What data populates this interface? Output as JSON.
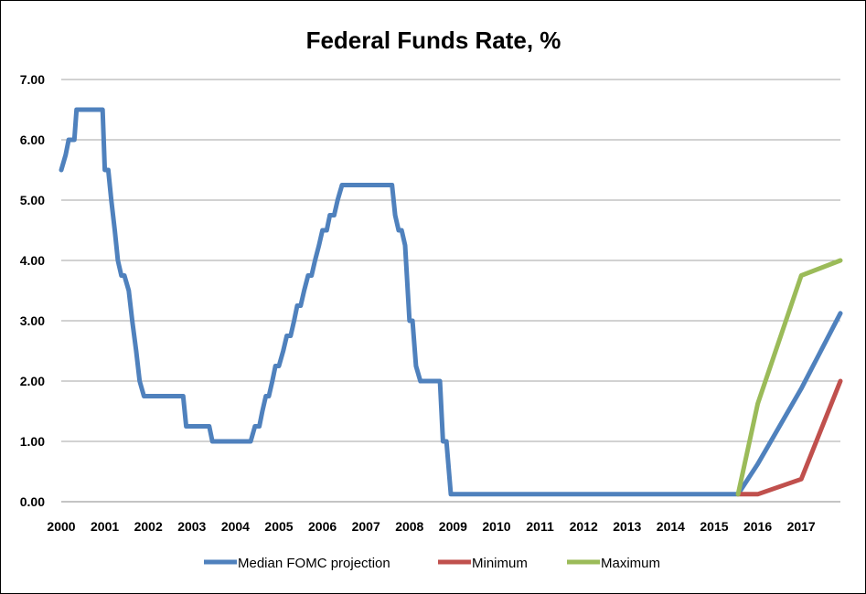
{
  "chart_data": {
    "type": "line",
    "title": "Federal Funds Rate, %",
    "xlabel": "",
    "ylabel": "",
    "ylim": [
      0,
      7
    ],
    "xlim": [
      2000,
      2017.9
    ],
    "y_ticks": [
      "0.00",
      "1.00",
      "2.00",
      "3.00",
      "4.00",
      "5.00",
      "6.00",
      "7.00"
    ],
    "x_ticks": [
      "2000",
      "2001",
      "2002",
      "2003",
      "2004",
      "2005",
      "2006",
      "2007",
      "2008",
      "2009",
      "2010",
      "2011",
      "2012",
      "2013",
      "2014",
      "2015",
      "2016",
      "2017"
    ],
    "grid": "horizontal",
    "legend_position": "bottom",
    "series": [
      {
        "name": "Median FOMC projection",
        "color": "#4F81BD",
        "points": [
          [
            2000.0,
            5.5
          ],
          [
            2000.1,
            5.75
          ],
          [
            2000.17,
            6.0
          ],
          [
            2000.3,
            6.0
          ],
          [
            2000.35,
            6.5
          ],
          [
            2000.95,
            6.5
          ],
          [
            2001.0,
            5.5
          ],
          [
            2001.08,
            5.5
          ],
          [
            2001.15,
            5.0
          ],
          [
            2001.23,
            4.5
          ],
          [
            2001.3,
            4.0
          ],
          [
            2001.38,
            3.75
          ],
          [
            2001.45,
            3.75
          ],
          [
            2001.55,
            3.5
          ],
          [
            2001.63,
            3.0
          ],
          [
            2001.72,
            2.5
          ],
          [
            2001.8,
            2.0
          ],
          [
            2001.9,
            1.75
          ],
          [
            2002.8,
            1.75
          ],
          [
            2002.87,
            1.25
          ],
          [
            2003.4,
            1.25
          ],
          [
            2003.47,
            1.0
          ],
          [
            2004.35,
            1.0
          ],
          [
            2004.45,
            1.25
          ],
          [
            2004.55,
            1.25
          ],
          [
            2004.62,
            1.5
          ],
          [
            2004.7,
            1.75
          ],
          [
            2004.77,
            1.75
          ],
          [
            2004.85,
            2.0
          ],
          [
            2004.92,
            2.25
          ],
          [
            2005.0,
            2.25
          ],
          [
            2005.1,
            2.5
          ],
          [
            2005.18,
            2.75
          ],
          [
            2005.27,
            2.75
          ],
          [
            2005.35,
            3.0
          ],
          [
            2005.42,
            3.25
          ],
          [
            2005.5,
            3.25
          ],
          [
            2005.58,
            3.5
          ],
          [
            2005.67,
            3.75
          ],
          [
            2005.75,
            3.75
          ],
          [
            2005.83,
            4.0
          ],
          [
            2005.92,
            4.25
          ],
          [
            2006.0,
            4.5
          ],
          [
            2006.1,
            4.5
          ],
          [
            2006.17,
            4.75
          ],
          [
            2006.27,
            4.75
          ],
          [
            2006.35,
            5.0
          ],
          [
            2006.45,
            5.25
          ],
          [
            2007.6,
            5.25
          ],
          [
            2007.67,
            4.75
          ],
          [
            2007.75,
            4.5
          ],
          [
            2007.82,
            4.5
          ],
          [
            2007.9,
            4.25
          ],
          [
            2008.0,
            3.0
          ],
          [
            2008.07,
            3.0
          ],
          [
            2008.15,
            2.25
          ],
          [
            2008.25,
            2.0
          ],
          [
            2008.7,
            2.0
          ],
          [
            2008.77,
            1.0
          ],
          [
            2008.85,
            1.0
          ],
          [
            2008.95,
            0.125
          ],
          [
            2015.55,
            0.125
          ],
          [
            2016.0,
            0.625
          ],
          [
            2017.0,
            1.875
          ],
          [
            2017.9,
            3.125
          ]
        ]
      },
      {
        "name": "Minimum",
        "color": "#C0504D",
        "points": [
          [
            2015.55,
            0.125
          ],
          [
            2016.0,
            0.125
          ],
          [
            2017.0,
            0.375
          ],
          [
            2017.9,
            2.0
          ]
        ]
      },
      {
        "name": "Maximum",
        "color": "#9BBB59",
        "points": [
          [
            2015.55,
            0.125
          ],
          [
            2016.0,
            1.625
          ],
          [
            2017.0,
            3.75
          ],
          [
            2017.9,
            4.0
          ]
        ]
      }
    ]
  }
}
